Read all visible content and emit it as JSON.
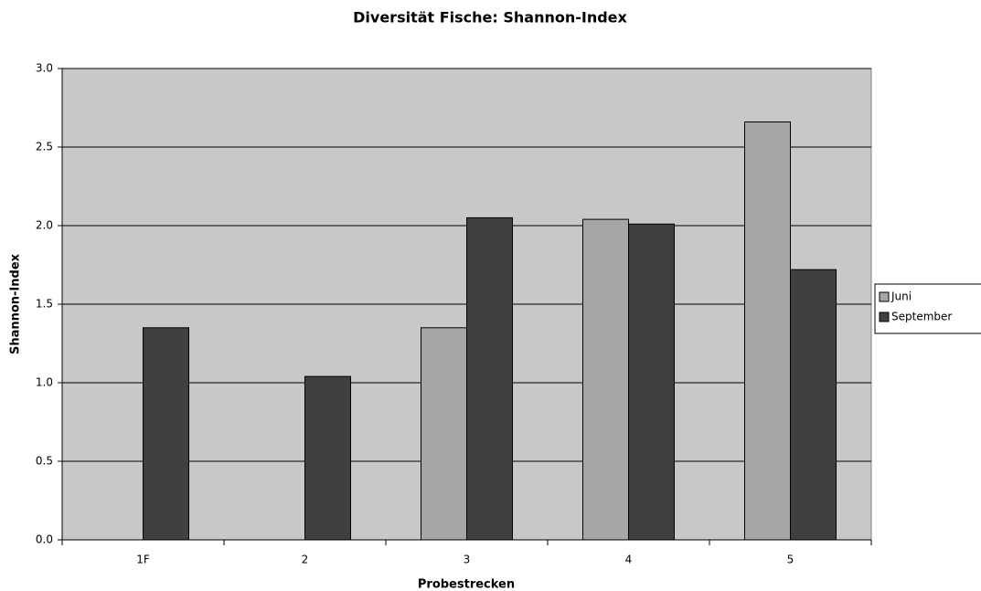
{
  "chart_data": {
    "type": "bar",
    "title": "Diversität Fische: Shannon-Index",
    "x_label": "Probestrecken",
    "y_label": "Shannon-Index",
    "categories": [
      "1F",
      "2",
      "3",
      "4",
      "5"
    ],
    "series": [
      {
        "name": "Juni",
        "color": "#a6a6a6",
        "values": [
          null,
          null,
          1.35,
          2.04,
          2.66
        ]
      },
      {
        "name": "September",
        "color": "#404040",
        "values": [
          1.35,
          1.04,
          2.05,
          2.01,
          1.72
        ]
      }
    ],
    "ylim": [
      0,
      3
    ],
    "yticks": [
      {
        "value": 0,
        "label": "0.0"
      },
      {
        "value": 0.5,
        "label": "0.5"
      },
      {
        "value": 1,
        "label": "1.0"
      },
      {
        "value": 1.5,
        "label": "1.5"
      },
      {
        "value": 2,
        "label": "2.0"
      },
      {
        "value": 2.5,
        "label": "2.5"
      },
      {
        "value": 3,
        "label": "3.0"
      }
    ],
    "grid": true,
    "legend": "right"
  }
}
